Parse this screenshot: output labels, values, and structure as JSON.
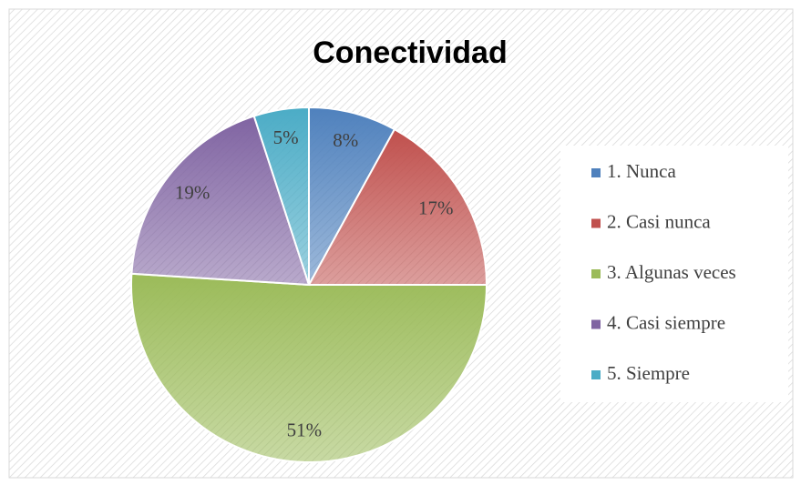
{
  "chart_data": {
    "type": "pie",
    "title": "Conectividad",
    "categories": [
      "1. Nunca",
      "2. Casi nunca",
      "3. Algunas veces",
      "4. Casi siempre",
      "5. Siempre"
    ],
    "values": [
      8,
      17,
      51,
      19,
      5
    ],
    "value_labels": [
      "8%",
      "17%",
      "51%",
      "19%",
      "5%"
    ],
    "colors": [
      "#4f81bd",
      "#c0504d",
      "#9bbb59",
      "#8064a2",
      "#4bacc6"
    ],
    "legend": "right"
  }
}
